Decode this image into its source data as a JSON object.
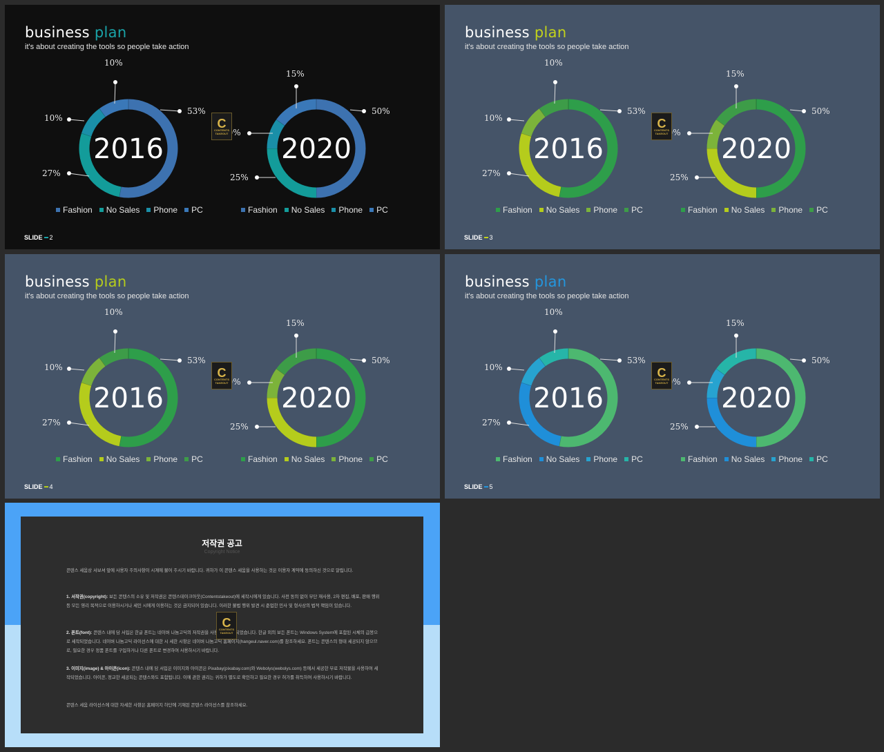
{
  "slides": [
    {
      "title_main": "business",
      "title_accent": "plan",
      "subtitle": "it's about creating the tools so people take action",
      "slide_label": "SLIDE",
      "slide_number": "2",
      "colors": {
        "bg": "#0f0f0f",
        "accent": "#1aa3a8",
        "fashion": "#3d72b0",
        "nosales": "#139c9a",
        "phone": "#1a8fa8",
        "pc": "#3a78b8"
      }
    },
    {
      "title_main": "business",
      "title_accent": "plan",
      "subtitle": "it's about creating the tools so people take action",
      "slide_label": "SLIDE",
      "slide_number": "3",
      "colors": {
        "bg": "#455468",
        "accent": "#c2d21b",
        "fashion": "#2e9e4a",
        "nosales": "#b5cc1c",
        "phone": "#7cb33a",
        "pc": "#3d9c48"
      }
    },
    {
      "title_main": "business",
      "title_accent": "plan",
      "subtitle": "it's about creating the tools so people take action",
      "slide_label": "SLIDE",
      "slide_number": "4",
      "colors": {
        "bg": "#455468",
        "accent": "#b5cc1c",
        "fashion": "#2e9e4a",
        "nosales": "#b5cc1c",
        "phone": "#7cb33a",
        "pc": "#3d9c48"
      }
    },
    {
      "title_main": "business",
      "title_accent": "plan",
      "subtitle": "it's about creating the tools so people take action",
      "slide_label": "SLIDE",
      "slide_number": "5",
      "colors": {
        "bg": "#455468",
        "accent": "#2496dd",
        "fashion": "#4db870",
        "nosales": "#1f8fd9",
        "phone": "#27a3d0",
        "pc": "#26b5a8"
      }
    }
  ],
  "chart_data": [
    {
      "type": "pie",
      "variant": "donut",
      "center_label": "2016",
      "categories": [
        "Fashion",
        "No Sales",
        "Phone",
        "PC"
      ],
      "values": [
        53,
        27,
        10,
        10
      ],
      "labels": [
        "53%",
        "27%",
        "10%",
        "10%"
      ]
    },
    {
      "type": "pie",
      "variant": "donut",
      "center_label": "2020",
      "categories": [
        "Fashion",
        "No Sales",
        "Phone",
        "PC"
      ],
      "values": [
        50,
        25,
        10,
        15
      ],
      "labels": [
        "50%",
        "25%",
        "10%",
        "15%"
      ]
    }
  ],
  "logo": {
    "letter": "C",
    "sub": "CONTENTS TAKEOUT"
  },
  "notice": {
    "title": "저작권 공고",
    "subtitle": "Copyright Notice",
    "intro": "콘텐스 세움상 서보셔 앞에 사용자 주의사항이 시계에 불어 주시기 바랍니다. 귀하가 이 콘텐스 세움을 사용하는 것은 이용자 계약에 동의하신 것으로 알립니다.",
    "p1_head": "1. 서작권(copyright):",
    "p1": "보든 콘텐스의 소유 및 저작권은 콘텐스테이크아웃(Contentstakeout)에 세작시에게 있습니다. 사전 동의 없이 무단 재사용, 2차 편집, 배포, 판매 행위 등 모든 영리 목적으로 이용하시거나 세인 시에게 이용하는 것은 금지되어 있습니다. 이러한 불법 행위 발견 시 준업한 민사 및 형사상의 법적 책임이 있습니다.",
    "p2_head": "2. 폰트(font):",
    "p2": "콘텐스 내에 담 서입은 한글 폰트는 네이버 나눔고딕의 저작권을 사용하여 세작되었습니다. 한글 외의 보든 폰트는 Windows System에 포함된 시체의 급봉으로 세작되었습니다. 네이버 나눔고딕 라이선스에 대한 시 세한 시항은 네이버 나눔고딕 홈페이지(hangeul.naver.com)를 참조하세요. 폰트는 콘텐스의 형태 세공되지 않으므로, 필요한 경우 정품 폰트를 구입하거나 다른 폰트로 변경하여 사용하시기 바랍니다.",
    "p3_head": "3. 이미지(image) & 아이콘(icon):",
    "p3": "콘텐스 내에 담 서입은 이미지와 아이콘은 Pixabay(pixabay.com)와 Webolys(webolys.com) 등에서 세공한 무료 저작물을 사용하여 세작되었습니다. 아이콘, 정교한 세공되는 콘텐스와도 포함됩니다. 이에 관한 권리는 귀하가 별도로 확인하고 필요한 경우 허가를 취득하여 사용하시기 바랍니다.",
    "footer": "콘텐스 세움 라이선스에 대한 자세한 사항은 홈페이지 하단에 기재된 콘텐스 라이선스를 참조하세요."
  }
}
